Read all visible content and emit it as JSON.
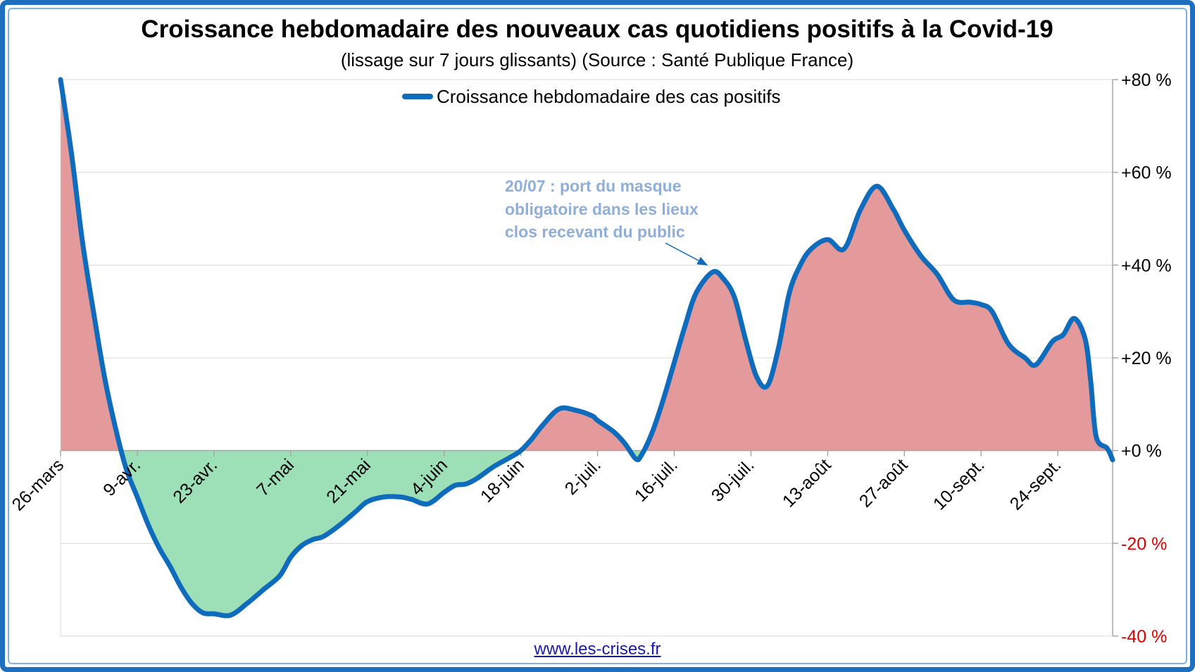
{
  "chart_data": {
    "type": "area",
    "title": "Croissance hebdomadaire des nouveaux cas quotidiens positifs à la Covid-19",
    "subtitle": "(lissage sur 7 jours glissants) (Source : Santé Publique France)",
    "legend": {
      "label": "Croissance hebdomadaire des cas positifs",
      "placement": "top-center"
    },
    "y_axis": {
      "side": "right",
      "ylim": [
        -40,
        80
      ],
      "ticks": [
        80,
        60,
        40,
        20,
        0,
        -20,
        -40
      ],
      "tick_labels": [
        "+80 %",
        "+60 %",
        "+40 %",
        "+20 %",
        "+0 %",
        "-20 %",
        "-40 %"
      ],
      "positive_label_color": "#000000",
      "negative_label_color": "#e00000"
    },
    "x_axis": {
      "start_date": "2020-03-26",
      "end_date": "2020-10-04",
      "tick_dates": [
        "2020-03-26",
        "2020-04-09",
        "2020-04-23",
        "2020-05-07",
        "2020-05-21",
        "2020-06-04",
        "2020-06-18",
        "2020-07-02",
        "2020-07-16",
        "2020-07-30",
        "2020-08-13",
        "2020-08-27",
        "2020-09-10",
        "2020-09-24"
      ],
      "tick_labels": [
        "26-mars",
        "9-avr.",
        "23-avr.",
        "7-mai",
        "21-mai",
        "4-juin",
        "18-juin",
        "2-juil.",
        "16-juil.",
        "30-juil.",
        "13-août",
        "27-août",
        "10-sept.",
        "24-sept."
      ]
    },
    "gridlines": true,
    "series": [
      {
        "name": "Croissance hebdomadaire des cas positifs",
        "color": "#0f6cbd",
        "positive_fill": "#e49a9a",
        "negative_fill": "#9de0b8",
        "points": [
          [
            "2020-03-26",
            80
          ],
          [
            "2020-03-28",
            64
          ],
          [
            "2020-03-30",
            45
          ],
          [
            "2020-04-01",
            30
          ],
          [
            "2020-04-03",
            16
          ],
          [
            "2020-04-05",
            5
          ],
          [
            "2020-04-07",
            -4
          ],
          [
            "2020-04-09",
            -10
          ],
          [
            "2020-04-11",
            -16
          ],
          [
            "2020-04-13",
            -21
          ],
          [
            "2020-04-15",
            -25
          ],
          [
            "2020-04-17",
            -29.5
          ],
          [
            "2020-04-19",
            -33
          ],
          [
            "2020-04-21",
            -35
          ],
          [
            "2020-04-23",
            -35.2
          ],
          [
            "2020-04-26",
            -35.5
          ],
          [
            "2020-04-29",
            -33
          ],
          [
            "2020-05-02",
            -30
          ],
          [
            "2020-05-05",
            -27
          ],
          [
            "2020-05-07",
            -23
          ],
          [
            "2020-05-09",
            -20.5
          ],
          [
            "2020-05-11",
            -19.2
          ],
          [
            "2020-05-13",
            -18.5
          ],
          [
            "2020-05-16",
            -16
          ],
          [
            "2020-05-19",
            -13
          ],
          [
            "2020-05-21",
            -11
          ],
          [
            "2020-05-24",
            -10
          ],
          [
            "2020-05-27",
            -10
          ],
          [
            "2020-05-29",
            -10.5
          ],
          [
            "2020-06-01",
            -11.5
          ],
          [
            "2020-06-04",
            -9
          ],
          [
            "2020-06-06",
            -7.5
          ],
          [
            "2020-06-08",
            -7.2
          ],
          [
            "2020-06-10",
            -6
          ],
          [
            "2020-06-13",
            -3.5
          ],
          [
            "2020-06-16",
            -1.5
          ],
          [
            "2020-06-18",
            0
          ],
          [
            "2020-06-20",
            2.5
          ],
          [
            "2020-06-22",
            5.5
          ],
          [
            "2020-06-25",
            9
          ],
          [
            "2020-06-28",
            8.7
          ],
          [
            "2020-07-01",
            7.5
          ],
          [
            "2020-07-02",
            6.5
          ],
          [
            "2020-07-05",
            4
          ],
          [
            "2020-07-07",
            1.5
          ],
          [
            "2020-07-09",
            -1.8
          ],
          [
            "2020-07-10",
            -1
          ],
          [
            "2020-07-12",
            4
          ],
          [
            "2020-07-14",
            11
          ],
          [
            "2020-07-16",
            19
          ],
          [
            "2020-07-18",
            27
          ],
          [
            "2020-07-20",
            34
          ],
          [
            "2020-07-23",
            38.5
          ],
          [
            "2020-07-25",
            37
          ],
          [
            "2020-07-27",
            33
          ],
          [
            "2020-07-29",
            24
          ],
          [
            "2020-07-31",
            16
          ],
          [
            "2020-08-02",
            14
          ],
          [
            "2020-08-04",
            22
          ],
          [
            "2020-08-06",
            34
          ],
          [
            "2020-08-08",
            40
          ],
          [
            "2020-08-10",
            43.5
          ],
          [
            "2020-08-13",
            45.5
          ],
          [
            "2020-08-16",
            43.5
          ],
          [
            "2020-08-19",
            52
          ],
          [
            "2020-08-22",
            57
          ],
          [
            "2020-08-25",
            52
          ],
          [
            "2020-08-27",
            47.5
          ],
          [
            "2020-08-30",
            42
          ],
          [
            "2020-09-02",
            38
          ],
          [
            "2020-09-05",
            32.5
          ],
          [
            "2020-09-08",
            32
          ],
          [
            "2020-09-10",
            31.5
          ],
          [
            "2020-09-12",
            30
          ],
          [
            "2020-09-15",
            23
          ],
          [
            "2020-09-18",
            20
          ],
          [
            "2020-09-20",
            18.5
          ],
          [
            "2020-09-23",
            23.5
          ],
          [
            "2020-09-25",
            25
          ],
          [
            "2020-09-27",
            28.5
          ],
          [
            "2020-09-29",
            24
          ],
          [
            "2020-09-30",
            15
          ],
          [
            "2020-10-01",
            3
          ],
          [
            "2020-10-03",
            0.5
          ],
          [
            "2020-10-04",
            -2
          ]
        ]
      }
    ],
    "annotations": [
      {
        "lines": [
          "20/07 : port du masque",
          "obligatoire dans les lieux",
          "clos recevant du public"
        ],
        "arrow_to": [
          "2020-07-23",
          38.5
        ]
      }
    ]
  },
  "footer": {
    "source_url_text": "www.les-crises.fr"
  }
}
